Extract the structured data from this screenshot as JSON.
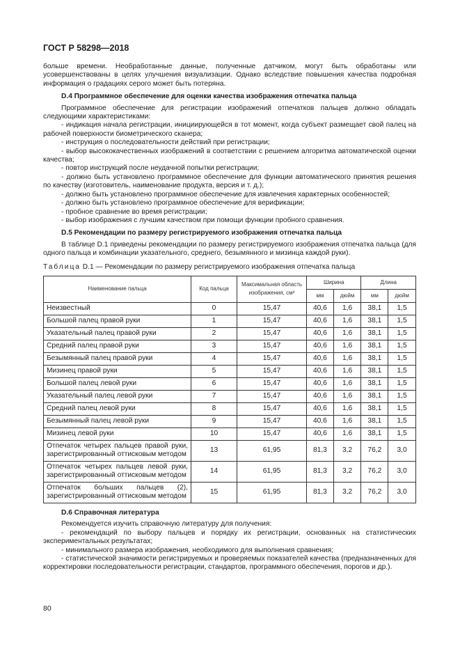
{
  "header": {
    "title": "ГОСТ Р 58298—2018"
  },
  "intro": "больше времени. Необработанные данные, полученные датчиком, могут быть обработаны или усовершенствованы в целях улучшения визуализации. Однако вследствие повышения качества подробная информация о градациях серого может быть потеряна.",
  "d4": {
    "title": "D.4 Программное обеспечение для оценки качества изображения отпечатка пальца",
    "lead": "Программное обеспечение для регистрации изображений отпечатков пальцев должно обладать следующими характеристиками:",
    "items": [
      "- индикация начала регистрации, инициирующейся в тот момент, когда субъект размещает свой палец на рабочей поверхности биометрического сканера;",
      "- инструкция о последовательности действий при регистрации;",
      "- выбор высококачественных изображений в соответствии с решением алгоритма автоматической оценки качества;",
      "- повтор инструкций после неудачной попытки регистрации;",
      "- должно быть установлено программное обеспечение для функции автоматического принятия решения по качеству (изготовитель, наименование продукта, версия и т. д.);",
      "- должно быть установлено программное обеспечение для извлечения характерных особенностей;",
      "- должно быть установлено программное обеспечение для верификации;",
      "- пробное сравнение во время регистрации;",
      "- выбор изображения с лучшим качеством при помощи функции пробного сравнения."
    ]
  },
  "d5": {
    "title": "D.5 Рекомендации по размеру регистрируемого изображения отпечатка пальца",
    "text": "В таблице D.1 приведены рекомендации по размеру регистрируемого изображения отпечатка пальца (для одного пальца и комбинации указательного, среднего, безымянного и мизинца каждой руки)."
  },
  "table": {
    "caption_label": "Таблица",
    "caption": "D.1 — Рекомендации по размеру регистрируемого изображения отпечатка пальца",
    "headers": {
      "name": "Наименование пальца",
      "code": "Код пальца",
      "area": "Максимальная область изображения, см²",
      "width": "Ширина",
      "length": "Длина",
      "mm": "мм",
      "inch": "дюйм"
    },
    "rows": [
      [
        "Неизвестный",
        "0",
        "15,47",
        "40,6",
        "1,6",
        "38,1",
        "1,5"
      ],
      [
        "Большой палец правой руки",
        "1",
        "15,47",
        "40,6",
        "1,6",
        "38,1",
        "1,5"
      ],
      [
        "Указательный палец правой руки",
        "2",
        "15,47",
        "40,6",
        "1,6",
        "38,1",
        "1,5"
      ],
      [
        "Средний палец правой руки",
        "3",
        "15,47",
        "40,6",
        "1,6",
        "38,1",
        "1,5"
      ],
      [
        "Безымянный палец правой руки",
        "4",
        "15,47",
        "40,6",
        "1,6",
        "38,1",
        "1,5"
      ],
      [
        "Мизинец правой руки",
        "5",
        "15,47",
        "40,6",
        "1,6",
        "38,1",
        "1,5"
      ],
      [
        "Большой палец левой руки",
        "6",
        "15,47",
        "40,6",
        "1,6",
        "38,1",
        "1,5"
      ],
      [
        "Указательный палец левой руки",
        "7",
        "15,47",
        "40,6",
        "1,6",
        "38,1",
        "1,5"
      ],
      [
        "Средний палец левой руки",
        "8",
        "15,47",
        "40,6",
        "1,6",
        "38,1",
        "1,5"
      ],
      [
        "Безымянный палец левой руки",
        "9",
        "15,47",
        "40,6",
        "1,6",
        "38,1",
        "1,5"
      ],
      [
        "Мизинец левой руки",
        "10",
        "15,47",
        "40,6",
        "1,6",
        "38,1",
        "1,5"
      ],
      [
        "Отпечаток четырех пальцев правой руки, зарегистрированный оттисковым методом",
        "13",
        "61,95",
        "81,3",
        "3,2",
        "76,2",
        "3,0"
      ],
      [
        "Отпечаток четырех пальцев левой руки, зарегистрированный оттисковым методом",
        "14",
        "61,95",
        "81,3",
        "3,2",
        "76,2",
        "3,0"
      ],
      [
        "Отпечаток больших пальцев (2), зарегистрированный оттисковым методом",
        "15",
        "61,95",
        "81,3",
        "3,2",
        "76,2",
        "3,0"
      ]
    ]
  },
  "d6": {
    "title": "D.6 Справочная литература",
    "lead": "Рекомендуется изучить справочную литературу для получения:",
    "items": [
      "- рекомендаций по выбору пальцев и порядку их регистрации, основанных на статистических экспериментальных результатах;",
      "- минимального размера изображения, необходимого для выполнения сравнения;",
      "- статистической значимости регистрируемых и проверяемых показателей качества (предназначенных для корректировки последовательности регистрации, стандартов, программного обеспечения, порогов и др.)."
    ]
  },
  "footer": {
    "page_number": "80"
  }
}
